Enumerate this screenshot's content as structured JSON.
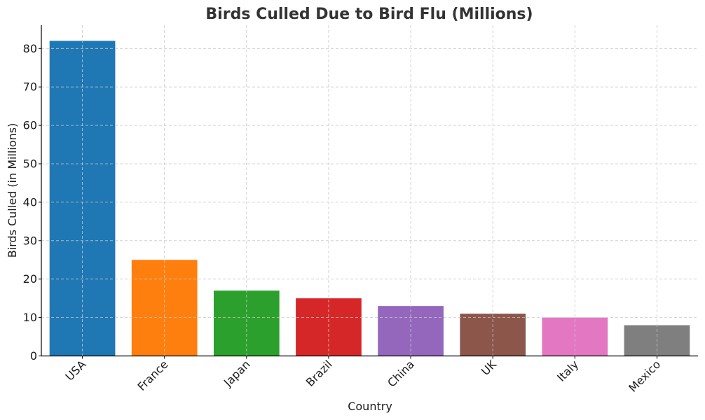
{
  "chart_data": {
    "type": "bar",
    "title": "Birds Culled Due to Bird Flu (Millions)",
    "xlabel": "Country",
    "ylabel": "Birds Culled (in Millions)",
    "categories": [
      "USA",
      "France",
      "Japan",
      "Brazil",
      "China",
      "UK",
      "Italy",
      "Mexico"
    ],
    "values": [
      82,
      25,
      17,
      15,
      13,
      11,
      10,
      8
    ],
    "colors": [
      "#1f77b4",
      "#ff7f0e",
      "#2ca02c",
      "#d62728",
      "#9467bd",
      "#8c564b",
      "#e377c2",
      "#7f7f7f"
    ],
    "ylim": [
      0,
      86
    ],
    "yticks": [
      "0",
      "10",
      "20",
      "30",
      "40",
      "50",
      "60",
      "70",
      "80"
    ],
    "grid": true,
    "xtick_rotation": 45
  }
}
